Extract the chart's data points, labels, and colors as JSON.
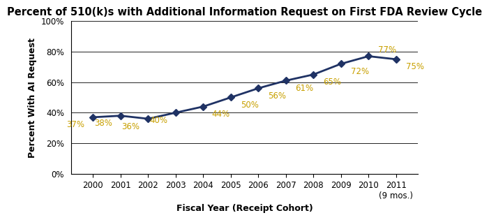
{
  "years": [
    2000,
    2001,
    2002,
    2003,
    2004,
    2005,
    2006,
    2007,
    2008,
    2009,
    2010,
    2011
  ],
  "values": [
    0.37,
    0.38,
    0.36,
    0.4,
    0.44,
    0.5,
    0.56,
    0.61,
    0.65,
    0.72,
    0.77,
    0.75
  ],
  "labels": [
    "37%",
    "38%",
    "36%",
    "40%",
    "44%",
    "50%",
    "56%",
    "61%",
    "65%",
    "72%",
    "77%",
    "75%"
  ],
  "label_dx": [
    -0.3,
    -0.3,
    -0.3,
    -0.3,
    0.3,
    0.35,
    0.35,
    0.35,
    0.35,
    0.35,
    0.35,
    0.35
  ],
  "label_dy": [
    -0.05,
    -0.05,
    -0.05,
    -0.05,
    -0.05,
    -0.05,
    -0.05,
    -0.05,
    -0.05,
    -0.05,
    0.04,
    -0.05
  ],
  "label_ha": [
    "right",
    "right",
    "right",
    "right",
    "left",
    "left",
    "left",
    "left",
    "left",
    "left",
    "left",
    "left"
  ],
  "x_tick_labels": [
    "2000",
    "2001",
    "2002",
    "2003",
    "2004",
    "2005",
    "2006",
    "2007",
    "2008",
    "2009",
    "2010",
    "2011\n(9 mos.)"
  ],
  "title": "Percent of 510(k)s with Additional Information Request on First FDA Review Cycle",
  "xlabel": "Fiscal Year (Receipt Cohort)",
  "ylabel": "Percent With AI Request",
  "line_color": "#1F3264",
  "marker_color": "#1F3264",
  "label_color": "#C8A000",
  "ylim": [
    0.0,
    1.0
  ],
  "yticks": [
    0.0,
    0.2,
    0.4,
    0.6,
    0.8,
    1.0
  ],
  "ytick_labels": [
    "0%",
    "20%",
    "40%",
    "60%",
    "80%",
    "100%"
  ],
  "background_color": "#FFFFFF",
  "title_fontsize": 10.5,
  "axis_label_fontsize": 9,
  "tick_fontsize": 8.5,
  "data_label_fontsize": 8.5
}
